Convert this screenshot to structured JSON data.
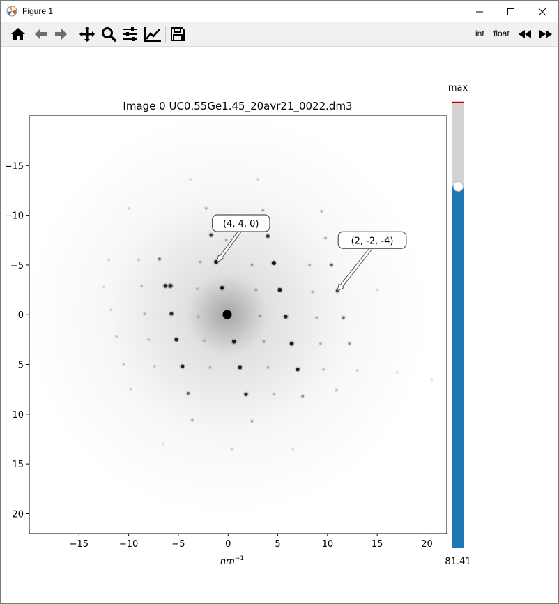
{
  "window": {
    "title": "Figure 1",
    "controls": [
      "minimize",
      "maximize",
      "close"
    ]
  },
  "toolbar": {
    "buttons": [
      {
        "name": "home-icon",
        "action": "Home"
      },
      {
        "name": "back-arrow-icon",
        "action": "Back"
      },
      {
        "name": "forward-arrow-icon",
        "action": "Forward"
      },
      {
        "name": "pan-icon",
        "action": "Pan"
      },
      {
        "name": "zoom-icon",
        "action": "Zoom"
      },
      {
        "name": "subplots-icon",
        "action": "Configure subplots"
      },
      {
        "name": "edit-axes-icon",
        "action": "Edit axis"
      },
      {
        "name": "save-icon",
        "action": "Save"
      }
    ],
    "int_label": "int",
    "float_label": "float",
    "prev_icon": "rewind-icon",
    "next_icon": "fast-forward-icon"
  },
  "figure": {
    "title": "Image 0 UC0.55Ge1.45_20avr21_0022.dm3",
    "xlabel": "nm",
    "xlabel_exp": "−1",
    "slider_max_label": "max",
    "slider_value_label": "81.41",
    "slider_value": 81.41,
    "slider_fraction": 0.81,
    "slider_color": "#1f77b4",
    "slider_track_color": "#d3d3d3",
    "annotations": [
      {
        "text": "(4, 4, 0)",
        "x": -1.1,
        "y": -5.3,
        "label_x": 1.3,
        "label_y": -9.2
      },
      {
        "text": "(2, -2, -4)",
        "x": 11.0,
        "y": -2.4,
        "label_x": 14.5,
        "label_y": -7.5
      }
    ]
  },
  "chart_data": {
    "type": "heatmap",
    "title": "Image 0 UC0.55Ge1.45_20avr21_0022.dm3",
    "xlabel": "nm−1",
    "ylabel": "",
    "xlim": [
      -20.0,
      22.0
    ],
    "ylim": [
      22.0,
      -20.0
    ],
    "xticks": [
      -15,
      -10,
      -5,
      0,
      5,
      10,
      15,
      20
    ],
    "yticks": [
      -15,
      -10,
      -5,
      0,
      5,
      10,
      15,
      20
    ],
    "colormap": "gray_r",
    "center_spot": [
      0,
      0
    ],
    "spots": [
      {
        "x": -1.2,
        "y": -5.3,
        "i": 0.9
      },
      {
        "x": -0.6,
        "y": -2.7,
        "i": 0.9
      },
      {
        "x": 0.6,
        "y": 2.7,
        "i": 0.9
      },
      {
        "x": 1.2,
        "y": 5.3,
        "i": 0.85
      },
      {
        "x": 1.8,
        "y": 8.0,
        "i": 0.8
      },
      {
        "x": -1.7,
        "y": -8.0,
        "i": 0.75
      },
      {
        "x": 4.6,
        "y": -5.2,
        "i": 0.95
      },
      {
        "x": 5.2,
        "y": -2.5,
        "i": 0.9
      },
      {
        "x": 5.8,
        "y": 0.2,
        "i": 0.85
      },
      {
        "x": 6.4,
        "y": 2.9,
        "i": 0.9
      },
      {
        "x": 7.0,
        "y": 5.5,
        "i": 0.85
      },
      {
        "x": 4.0,
        "y": -7.9,
        "i": 0.75
      },
      {
        "x": -5.8,
        "y": -2.9,
        "i": 0.85
      },
      {
        "x": -5.8,
        "y": -2.9,
        "i": 0.8
      },
      {
        "x": -5.8,
        "y": 0.2,
        "i": 0.0
      },
      {
        "x": -6.3,
        "y": -2.9,
        "i": 0.85
      },
      {
        "x": -5.7,
        "y": -0.1,
        "i": 0.8
      },
      {
        "x": -5.2,
        "y": 2.5,
        "i": 0.85
      },
      {
        "x": -4.6,
        "y": 5.2,
        "i": 0.85
      },
      {
        "x": -4.0,
        "y": 7.9,
        "i": 0.55
      },
      {
        "x": -6.9,
        "y": -5.6,
        "i": 0.5
      },
      {
        "x": 10.4,
        "y": -5.0,
        "i": 0.6
      },
      {
        "x": 11.0,
        "y": -2.4,
        "i": 0.7
      },
      {
        "x": 11.6,
        "y": 0.3,
        "i": 0.55
      },
      {
        "x": 12.2,
        "y": 2.9,
        "i": 0.4
      },
      {
        "x": 10.9,
        "y": 7.6,
        "i": 0.25
      },
      {
        "x": -2.2,
        "y": -10.7,
        "i": 0.3
      },
      {
        "x": 3.5,
        "y": -10.5,
        "i": 0.35
      },
      {
        "x": 9.4,
        "y": -10.4,
        "i": 0.3
      },
      {
        "x": 9.8,
        "y": -7.7,
        "i": 0.3
      },
      {
        "x": 2.4,
        "y": 10.7,
        "i": 0.35
      },
      {
        "x": -3.6,
        "y": 10.6,
        "i": 0.3
      },
      {
        "x": 7.5,
        "y": 8.2,
        "i": 0.4
      },
      {
        "x": -10.0,
        "y": -10.7,
        "i": 0.15
      },
      {
        "x": -11.2,
        "y": 2.2,
        "i": 0.2
      },
      {
        "x": -10.5,
        "y": 5.0,
        "i": 0.2
      },
      {
        "x": -9.8,
        "y": 7.5,
        "i": 0.15
      },
      {
        "x": 13.0,
        "y": 5.6,
        "i": 0.2
      },
      {
        "x": -11.8,
        "y": -0.5,
        "i": 0.15
      },
      {
        "x": -12.5,
        "y": -2.8,
        "i": 0.15
      },
      {
        "x": 17.0,
        "y": 5.8,
        "i": 0.12
      },
      {
        "x": 20.5,
        "y": 6.5,
        "i": 0.12
      },
      {
        "x": -3.8,
        "y": -13.6,
        "i": 0.15
      },
      {
        "x": 3.0,
        "y": -13.6,
        "i": 0.15
      },
      {
        "x": -12.0,
        "y": -5.5,
        "i": 0.15
      },
      {
        "x": 15.0,
        "y": -2.5,
        "i": 0.12
      },
      {
        "x": 0.4,
        "y": 13.5,
        "i": 0.15
      },
      {
        "x": 6.5,
        "y": 13.5,
        "i": 0.12
      },
      {
        "x": -6.5,
        "y": 13.0,
        "i": 0.12
      },
      {
        "x": -0.2,
        "y": -7.5,
        "i": 0.3
      },
      {
        "x": 2.4,
        "y": -5.0,
        "i": 0.35
      },
      {
        "x": -2.8,
        "y": -5.3,
        "i": 0.3
      },
      {
        "x": 2.8,
        "y": -2.5,
        "i": 0.35
      },
      {
        "x": -3.1,
        "y": -2.6,
        "i": 0.3
      },
      {
        "x": 3.2,
        "y": 0.1,
        "i": 0.35
      },
      {
        "x": -3.0,
        "y": 0.2,
        "i": 0.3
      },
      {
        "x": 3.6,
        "y": 2.7,
        "i": 0.35
      },
      {
        "x": -2.4,
        "y": 2.6,
        "i": 0.3
      },
      {
        "x": 4.0,
        "y": 5.3,
        "i": 0.3
      },
      {
        "x": -1.8,
        "y": 5.3,
        "i": 0.3
      },
      {
        "x": 4.6,
        "y": 8.0,
        "i": 0.25
      },
      {
        "x": 8.2,
        "y": -5.0,
        "i": 0.3
      },
      {
        "x": 8.5,
        "y": -2.3,
        "i": 0.3
      },
      {
        "x": 8.9,
        "y": 0.3,
        "i": 0.3
      },
      {
        "x": 9.3,
        "y": 2.9,
        "i": 0.3
      },
      {
        "x": 9.6,
        "y": 5.5,
        "i": 0.25
      },
      {
        "x": -8.7,
        "y": -2.9,
        "i": 0.25
      },
      {
        "x": -8.4,
        "y": -0.1,
        "i": 0.25
      },
      {
        "x": -8.0,
        "y": 2.5,
        "i": 0.25
      },
      {
        "x": -7.4,
        "y": 5.2,
        "i": 0.2
      },
      {
        "x": -9.0,
        "y": -5.5,
        "i": 0.2
      }
    ]
  }
}
